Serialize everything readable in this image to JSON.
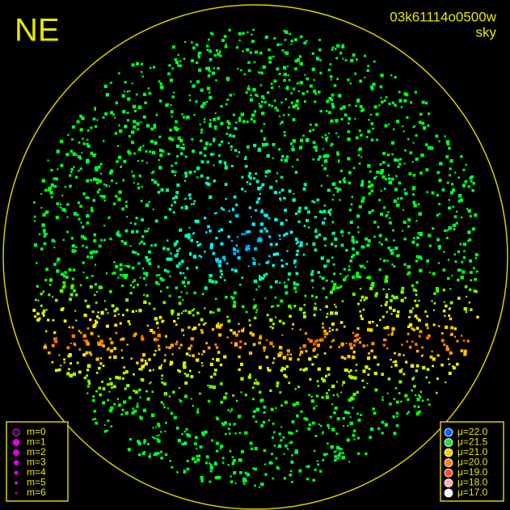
{
  "header": {
    "quadrant": "NE",
    "frame_id": "03k61114o0500w",
    "subtitle": "sky"
  },
  "magnitude_legend": [
    "m=0",
    "m=1",
    "m=2",
    "m=3",
    "m=4",
    "m=5",
    "m=6"
  ],
  "brightness_legend": [
    "μ=22.0",
    "μ=21.5",
    "μ=21.0",
    "μ=20.0",
    "μ=19.0",
    "μ=18.0",
    "μ=17.0"
  ]
}
